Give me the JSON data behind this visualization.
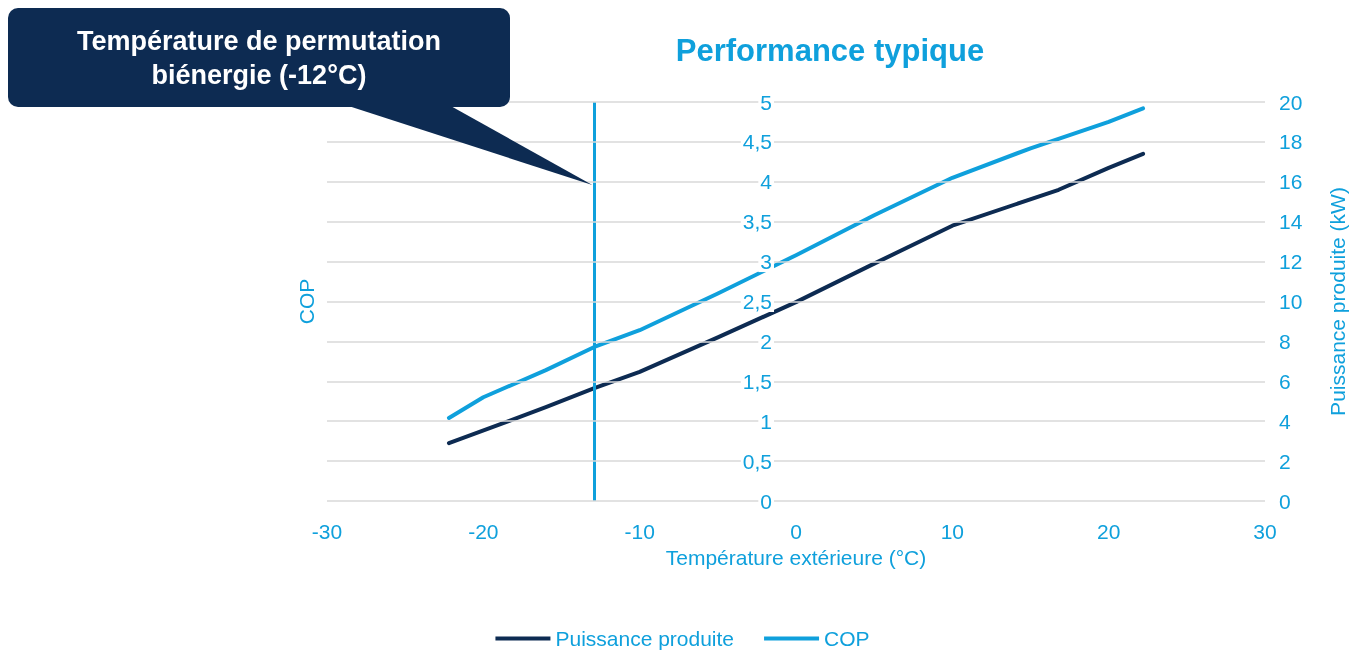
{
  "chart_data": {
    "type": "line",
    "title": "Performance typique",
    "xlabel": "Température extérieure (°C)",
    "ylabel": "COP",
    "y2label": "Puissance produite (kW)",
    "xlim": [
      -30,
      30
    ],
    "xticks": [
      -30,
      -20,
      -10,
      0,
      10,
      20,
      30
    ],
    "ylim": [
      0,
      5
    ],
    "yticks": [
      0,
      {
        "value": 0.5,
        "label": "0,5"
      },
      1,
      {
        "value": 1.5,
        "label": "1,5"
      },
      2,
      {
        "value": 2.5,
        "label": "2,5"
      },
      3,
      {
        "value": 3.5,
        "label": "3,5"
      },
      4,
      {
        "value": 4.5,
        "label": "4,5"
      },
      5
    ],
    "y2lim": [
      0,
      20
    ],
    "y2ticks": [
      0,
      2,
      4,
      6,
      8,
      10,
      12,
      14,
      16,
      18,
      20
    ],
    "grid": "y",
    "legend": "bottom",
    "marker": "none",
    "line_style": "solid",
    "series": [
      {
        "name": "Puissance produite",
        "color": "#0d2b52",
        "axis": "y2",
        "x": [
          -22.2,
          -16,
          -12.9,
          -10,
          -5,
          0,
          5,
          10,
          16.8,
          20,
          22.2
        ],
        "values": [
          2.9,
          4.7,
          5.66,
          6.47,
          8.2,
          9.97,
          11.9,
          13.8,
          15.6,
          16.7,
          17.4
        ]
      },
      {
        "name": "COP",
        "color": "#0fa0dc",
        "x": [
          -22.2,
          -20,
          -16,
          -12.9,
          -10,
          -5,
          0,
          5,
          10,
          15,
          20,
          22.2
        ],
        "values": [
          1.04,
          1.3,
          1.64,
          1.93,
          2.14,
          2.6,
          3.08,
          3.58,
          4.05,
          4.42,
          4.75,
          4.92
        ]
      }
    ],
    "ref_lines": [
      {
        "axis": "x",
        "value": -12.9,
        "label": "Température de permutation biénergie (-12°C)",
        "color": "#0fa0dc"
      }
    ]
  }
}
